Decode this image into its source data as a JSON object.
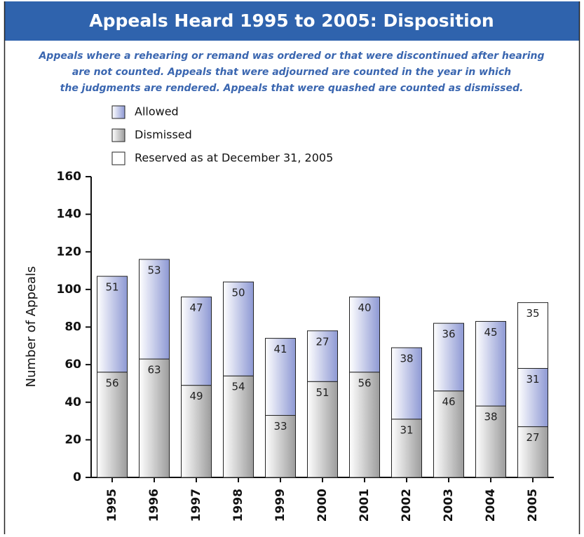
{
  "chart_data": {
    "type": "stacked_bar",
    "title": "Appeals Heard 1995 to 2005: Disposition",
    "subtitle": [
      "Appeals where a rehearing or remand was ordered or that were discontinued after hearing",
      "are not counted. Appeals that were adjourned are counted in the year in which",
      "the judgments are rendered. Appeals that were quashed are counted as dismissed."
    ],
    "y_label": "Number of Appeals",
    "categories": [
      "1995",
      "1996",
      "1997",
      "1998",
      "1999",
      "2000",
      "2001",
      "2002",
      "2003",
      "2004",
      "2005"
    ],
    "series": [
      {
        "name": "Allowed",
        "color": "#8e99d4",
        "values": [
          51,
          53,
          47,
          50,
          41,
          27,
          40,
          38,
          36,
          45,
          31
        ]
      },
      {
        "name": "Dismissed",
        "color": "#9c9c9c",
        "values": [
          56,
          63,
          49,
          54,
          33,
          51,
          56,
          31,
          46,
          38,
          27
        ]
      },
      {
        "name": "Reserved as at December 31, 2005",
        "color": "#ffffff",
        "values": [
          null,
          null,
          null,
          null,
          null,
          null,
          null,
          null,
          null,
          null,
          35
        ]
      }
    ],
    "ylim": [
      0,
      160
    ],
    "yticks": [
      0,
      20,
      40,
      60,
      80,
      100,
      120,
      140,
      160
    ]
  }
}
